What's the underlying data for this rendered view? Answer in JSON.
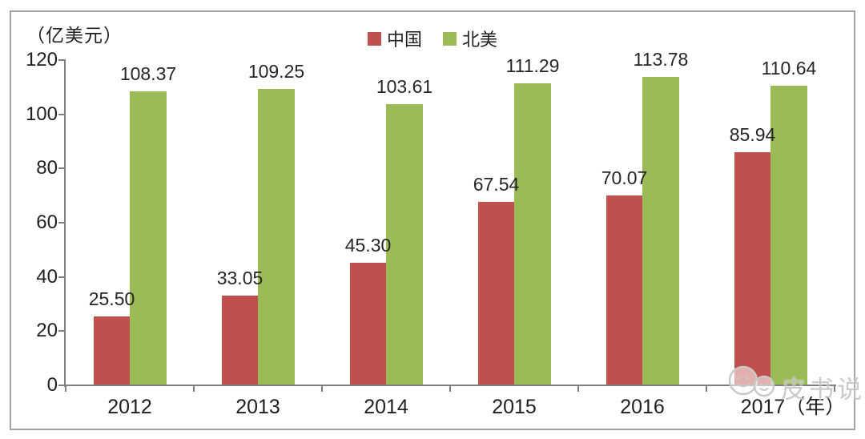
{
  "chart_data": {
    "type": "bar",
    "title": "",
    "unit_label": "（亿美元）",
    "xlabel_suffix": "（年）",
    "categories": [
      "2012",
      "2013",
      "2014",
      "2015",
      "2016",
      "2017（年）"
    ],
    "series": [
      {
        "name": "中国",
        "color": "#C0504D",
        "values": [
          25.5,
          33.05,
          45.3,
          67.54,
          70.07,
          85.94
        ],
        "labels": [
          "25.50",
          "33.05",
          "45.30",
          "67.54",
          "70.07",
          "85.94"
        ]
      },
      {
        "name": "北美",
        "color": "#9BBB59",
        "values": [
          108.37,
          109.25,
          103.61,
          111.29,
          113.78,
          110.64
        ],
        "labels": [
          "108.37",
          "109.25",
          "103.61",
          "111.29",
          "113.78",
          "110.64"
        ]
      }
    ],
    "ylim": [
      0,
      120
    ],
    "yticks": [
      "0",
      "20",
      "40",
      "60",
      "80",
      "100",
      "120"
    ],
    "grid": false,
    "legend_position": "top-center",
    "data_labels": true
  },
  "watermark": {
    "text": "皮书说",
    "icon": "faces-icon"
  },
  "colors": {
    "series_china": "#C0504D",
    "series_north_america": "#9BBB59",
    "axis": "#7f7f7f",
    "border": "#a3a3a3",
    "text": "#1f1f1f",
    "watermark": "#c3c3c3"
  }
}
